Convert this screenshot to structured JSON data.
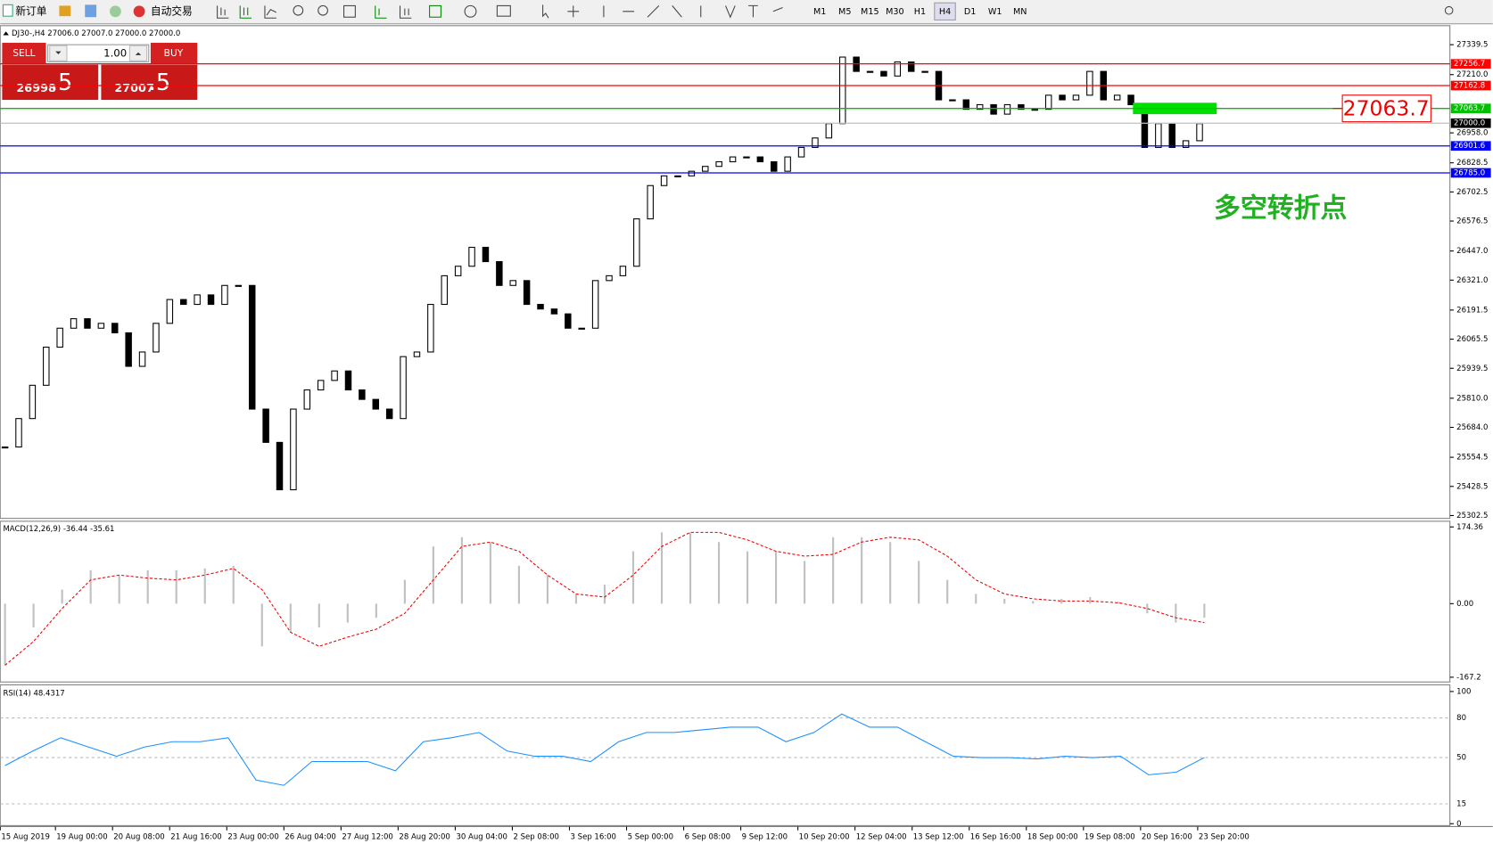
{
  "toolbar": {
    "new_order": "新订单",
    "auto_trading": "自动交易",
    "timeframes": [
      "M1",
      "M5",
      "M15",
      "M30",
      "H1",
      "H4",
      "D1",
      "W1",
      "MN"
    ],
    "active_timeframe": "H4"
  },
  "chart": {
    "symbol_info": "DJ30-,H4  27006.0 27007.0 27000.0 27000.0",
    "trade_panel": {
      "sell": "SELL",
      "buy": "BUY",
      "lot": "1.00",
      "sell_price": "26998",
      "sell_fraction": ".5",
      "buy_price": "27007",
      "buy_fraction": ".5"
    },
    "ylim": [
      25302.5,
      27339.5
    ],
    "yticks": [
      27339.5,
      {
        "value": 27210,
        "label": "27210.0"
      },
      {
        "value": 26958,
        "label": "26958.0"
      },
      26828.5,
      26702.5,
      26576.5,
      {
        "value": 26447,
        "label": "26447.0"
      },
      {
        "value": 26321,
        "label": "26321.0"
      },
      26191.5,
      26065.5,
      25939.5,
      {
        "value": 25810,
        "label": "25810.0"
      },
      {
        "value": 25684,
        "label": "25684.0"
      },
      25554.5,
      25428.5,
      25302.5
    ],
    "levels": [
      {
        "value": 27256.7,
        "color": "#ff0000"
      },
      {
        "value": 27162.8,
        "color": "#ff0000"
      },
      {
        "value": 27063.7,
        "color": "#00c000"
      },
      {
        "value": {
          "value": 27000,
          "label": "27000.0"
        },
        "color": "#000000"
      },
      {
        "value": 26901.6,
        "color": "#0000ff"
      },
      {
        "value": {
          "value": 26785,
          "label": "26785.0"
        },
        "color": "#0000ff"
      }
    ],
    "callout": 27063.7,
    "annotation": "多空转折点",
    "closes": [
      25599,
      25722,
      25866,
      26031,
      26113,
      26154,
      26113,
      26134,
      26093,
      25948,
      26010,
      26134,
      26237,
      26216,
      26257,
      26216,
      26298,
      26298,
      25763,
      25619,
      25414,
      25763,
      25846,
      25887,
      25928,
      25846,
      25805,
      25763,
      25722,
      25990,
      26010,
      26216,
      26340,
      26381,
      26463,
      26401,
      26298,
      26319,
      26216,
      26196,
      26175,
      26113,
      26113,
      26319,
      26340,
      26381,
      26586,
      26730,
      26772,
      26772,
      26792,
      26813,
      26833,
      26854,
      26854,
      26833,
      26792,
      26854,
      26895,
      26936,
      26998,
      27286,
      27224,
      27224,
      27204,
      27265,
      27224,
      27224,
      27101,
      27101,
      27060,
      27080,
      27039,
      27080,
      27060,
      27060,
      27121,
      27101,
      27121,
      27224,
      27101,
      27121,
      27080,
      26895,
      26998,
      26895,
      26924,
      26998
    ]
  },
  "macd": {
    "label": "MACD(12,26,9) -36.44 -35.61",
    "ylim": [
      -167.2,
      174.36
    ],
    "yticks": [
      174.36,
      {
        "value": 0,
        "label": "0.00"
      },
      -167.2
    ],
    "histogram": [
      -140,
      -54,
      32,
      76,
      65,
      76,
      76,
      80,
      86,
      -97,
      -65,
      -54,
      -43,
      -32,
      54,
      130,
      151,
      140,
      86,
      65,
      22,
      43,
      119,
      162,
      162,
      140,
      119,
      119,
      97,
      151,
      151,
      140,
      97,
      54,
      22,
      11,
      6,
      11,
      15,
      4,
      -22,
      -43,
      -32
    ],
    "signal": [
      -140,
      -86,
      -11,
      54,
      65,
      58,
      54,
      65,
      80,
      32,
      -65,
      -97,
      -76,
      -58,
      -22,
      54,
      130,
      140,
      119,
      65,
      22,
      15,
      65,
      130,
      162,
      162,
      145,
      119,
      108,
      112,
      140,
      151,
      145,
      108,
      54,
      22,
      11,
      6,
      6,
      2,
      -11,
      -32,
      -43
    ]
  },
  "rsi": {
    "label": "RSI(14) 48.4317",
    "ylim": [
      0,
      100
    ],
    "yticks": [
      100,
      80,
      50,
      15,
      0
    ],
    "values": [
      44,
      55,
      65,
      58,
      51,
      58,
      62,
      62,
      65,
      33,
      29,
      47,
      47,
      47,
      40,
      62,
      65,
      69,
      55,
      51,
      51,
      47,
      62,
      69,
      69,
      71,
      73,
      73,
      62,
      69,
      83,
      73,
      73,
      62,
      51,
      50,
      50,
      49,
      51,
      50,
      51,
      37,
      39,
      50
    ]
  },
  "time_axis": [
    "15 Aug 2019",
    "19 Aug 00:00",
    "20 Aug 08:00",
    "21 Aug 16:00",
    "23 Aug 00:00",
    "26 Aug 04:00",
    "27 Aug 12:00",
    "28 Aug 20:00",
    "30 Aug 04:00",
    "2 Sep 08:00",
    "3 Sep 16:00",
    "5 Sep 00:00",
    "6 Sep 08:00",
    "9 Sep 12:00",
    "10 Sep 20:00",
    "12 Sep 04:00",
    "13 Sep 12:00",
    "16 Sep 16:00",
    "18 Sep 00:00",
    "19 Sep 08:00",
    "20 Sep 16:00",
    "23 Sep 20:00"
  ]
}
